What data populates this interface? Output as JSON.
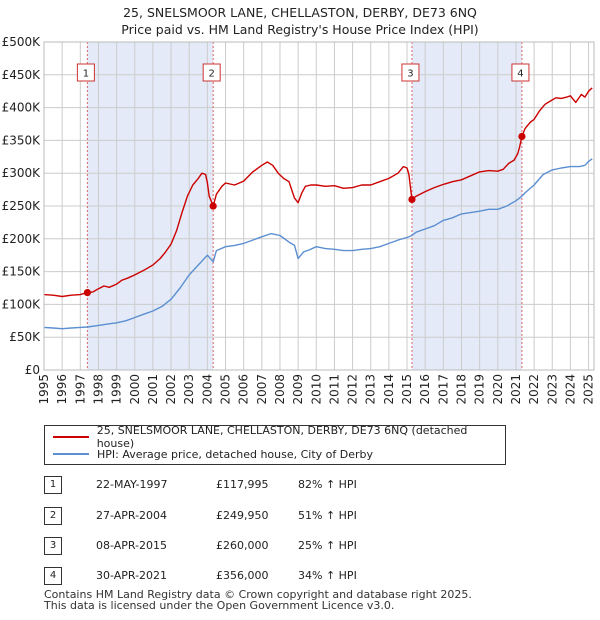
{
  "chart_data": {
    "type": "line",
    "title": "25, SNELSMOOR LANE, CHELLASTON, DERBY, DE73 6NQ",
    "subtitle": "Price paid vs. HM Land Registry's House Price Index (HPI)",
    "xlabel": "",
    "ylabel": "",
    "xlim": [
      1995,
      2025.3
    ],
    "ylim": [
      0,
      500000
    ],
    "x_ticks": [
      "1995",
      "1996",
      "1997",
      "1998",
      "1999",
      "2000",
      "2001",
      "2002",
      "2003",
      "2004",
      "2005",
      "2006",
      "2007",
      "2008",
      "2009",
      "2010",
      "2011",
      "2012",
      "2013",
      "2014",
      "2015",
      "2016",
      "2017",
      "2018",
      "2019",
      "2020",
      "2021",
      "2022",
      "2023",
      "2024",
      "2025"
    ],
    "y_ticks": [
      {
        "value": 0,
        "label": "£0"
      },
      {
        "value": 50000,
        "label": "£50K"
      },
      {
        "value": 100000,
        "label": "£100K"
      },
      {
        "value": 150000,
        "label": "£150K"
      },
      {
        "value": 200000,
        "label": "£200K"
      },
      {
        "value": 250000,
        "label": "£250K"
      },
      {
        "value": 300000,
        "label": "£300K"
      },
      {
        "value": 350000,
        "label": "£350K"
      },
      {
        "value": 400000,
        "label": "£400K"
      },
      {
        "value": 450000,
        "label": "£450K"
      },
      {
        "value": 500000,
        "label": "£500K"
      }
    ],
    "grid": true,
    "series": [
      {
        "name": "25, SNELSMOOR LANE, CHELLASTON, DERBY, DE73 6NQ (detached house)",
        "color": "#cc0000",
        "x": [
          1995.0,
          1995.5,
          1996.0,
          1996.5,
          1997.0,
          1997.39,
          1997.7,
          1998.0,
          1998.3,
          1998.6,
          1999.0,
          1999.3,
          1999.6,
          2000.0,
          2000.5,
          2001.0,
          2001.4,
          2001.7,
          2002.0,
          2002.3,
          2002.6,
          2002.9,
          2003.2,
          2003.5,
          2003.7,
          2003.9,
          2004.0,
          2004.1,
          2004.32,
          2004.5,
          2004.8,
          2005.0,
          2005.5,
          2006.0,
          2006.5,
          2007.0,
          2007.3,
          2007.6,
          2007.9,
          2008.2,
          2008.5,
          2008.8,
          2009.0,
          2009.2,
          2009.4,
          2009.7,
          2010.0,
          2010.5,
          2011.0,
          2011.5,
          2012.0,
          2012.5,
          2013.0,
          2013.5,
          2014.0,
          2014.5,
          2014.8,
          2015.0,
          2015.1,
          2015.27,
          2015.5,
          2016.0,
          2016.5,
          2017.0,
          2017.5,
          2018.0,
          2018.5,
          2019.0,
          2019.5,
          2020.0,
          2020.3,
          2020.6,
          2020.9,
          2021.1,
          2021.2,
          2021.33,
          2021.5,
          2021.8,
          2022.0,
          2022.3,
          2022.6,
          2022.9,
          2023.2,
          2023.5,
          2023.8,
          2024.0,
          2024.3,
          2024.6,
          2024.8,
          2025.0,
          2025.2
        ],
        "values": [
          115000,
          114000,
          112000,
          114000,
          115000,
          117995,
          119000,
          124000,
          128000,
          126000,
          131000,
          137000,
          140000,
          145000,
          152000,
          160000,
          170000,
          180000,
          192000,
          212000,
          240000,
          265000,
          282000,
          292000,
          300000,
          298000,
          285000,
          265000,
          249950,
          268000,
          280000,
          285000,
          282000,
          288000,
          302000,
          312000,
          317000,
          312000,
          300000,
          292000,
          287000,
          262000,
          255000,
          270000,
          280000,
          282000,
          282000,
          280000,
          281000,
          277000,
          278000,
          282000,
          282000,
          287000,
          292000,
          300000,
          310000,
          308000,
          298000,
          260000,
          265000,
          272000,
          278000,
          283000,
          287000,
          290000,
          296000,
          302000,
          304000,
          303000,
          306000,
          315000,
          320000,
          330000,
          340000,
          356000,
          368000,
          378000,
          382000,
          395000,
          405000,
          410000,
          415000,
          414000,
          416000,
          418000,
          408000,
          420000,
          416000,
          425000,
          430000
        ]
      },
      {
        "name": "HPI: Average price, detached house, City of Derby",
        "color": "#5b8fd1",
        "x": [
          1995.0,
          1995.5,
          1996.0,
          1996.5,
          1997.0,
          1997.39,
          1998.0,
          1998.5,
          1999.0,
          1999.5,
          2000.0,
          2000.5,
          2001.0,
          2001.5,
          2002.0,
          2002.5,
          2003.0,
          2003.5,
          2004.0,
          2004.32,
          2004.5,
          2005.0,
          2005.5,
          2006.0,
          2006.5,
          2007.0,
          2007.5,
          2008.0,
          2008.5,
          2008.8,
          2009.0,
          2009.3,
          2009.6,
          2010.0,
          2010.5,
          2011.0,
          2011.5,
          2012.0,
          2012.5,
          2013.0,
          2013.5,
          2014.0,
          2014.5,
          2015.0,
          2015.27,
          2015.5,
          2016.0,
          2016.5,
          2017.0,
          2017.5,
          2018.0,
          2018.5,
          2019.0,
          2019.5,
          2020.0,
          2020.5,
          2021.0,
          2021.33,
          2021.5,
          2022.0,
          2022.5,
          2023.0,
          2023.5,
          2024.0,
          2024.5,
          2024.8,
          2025.0,
          2025.2
        ],
        "values": [
          65000,
          64000,
          63000,
          64000,
          65000,
          65500,
          68000,
          70000,
          72000,
          75000,
          80000,
          85000,
          90000,
          97000,
          108000,
          125000,
          145000,
          160000,
          175000,
          165000,
          182000,
          188000,
          190000,
          193000,
          198000,
          203000,
          208000,
          205000,
          195000,
          190000,
          170000,
          180000,
          183000,
          188000,
          185000,
          184000,
          182000,
          182000,
          184000,
          185000,
          188000,
          193000,
          198000,
          202000,
          205000,
          210000,
          215000,
          220000,
          228000,
          232000,
          238000,
          240000,
          242000,
          245000,
          245000,
          250000,
          258000,
          265000,
          270000,
          282000,
          298000,
          305000,
          308000,
          310000,
          310000,
          312000,
          318000,
          322000
        ]
      }
    ],
    "annotations": [
      {
        "label": "1",
        "x": 1997.39,
        "value": 117995
      },
      {
        "label": "2",
        "x": 2004.32,
        "value": 249950
      },
      {
        "label": "3",
        "x": 2015.27,
        "value": 260000
      },
      {
        "label": "4",
        "x": 2021.33,
        "value": 356000
      }
    ],
    "shaded_ranges": [
      [
        1997.39,
        2004.32
      ],
      [
        2015.27,
        2021.33
      ]
    ],
    "legend_position": "bottom"
  },
  "legend": {
    "property_label": "25, SNELSMOOR LANE, CHELLASTON, DERBY, DE73 6NQ (detached house)",
    "hpi_label": "HPI: Average price, detached house, City of Derby",
    "property_color": "#cc0000",
    "hpi_color": "#5b8fd1"
  },
  "sales": [
    {
      "num": "1",
      "date": "22-MAY-1997",
      "price": "£117,995",
      "pct": "82% ↑ HPI"
    },
    {
      "num": "2",
      "date": "27-APR-2004",
      "price": "£249,950",
      "pct": "51% ↑ HPI"
    },
    {
      "num": "3",
      "date": "08-APR-2015",
      "price": "£260,000",
      "pct": "25% ↑ HPI"
    },
    {
      "num": "4",
      "date": "30-APR-2021",
      "price": "£356,000",
      "pct": "34% ↑ HPI"
    }
  ],
  "footer": {
    "line1": "Contains HM Land Registry data © Crown copyright and database right 2025.",
    "line2": "This data is licensed under the Open Government Licence v3.0."
  }
}
